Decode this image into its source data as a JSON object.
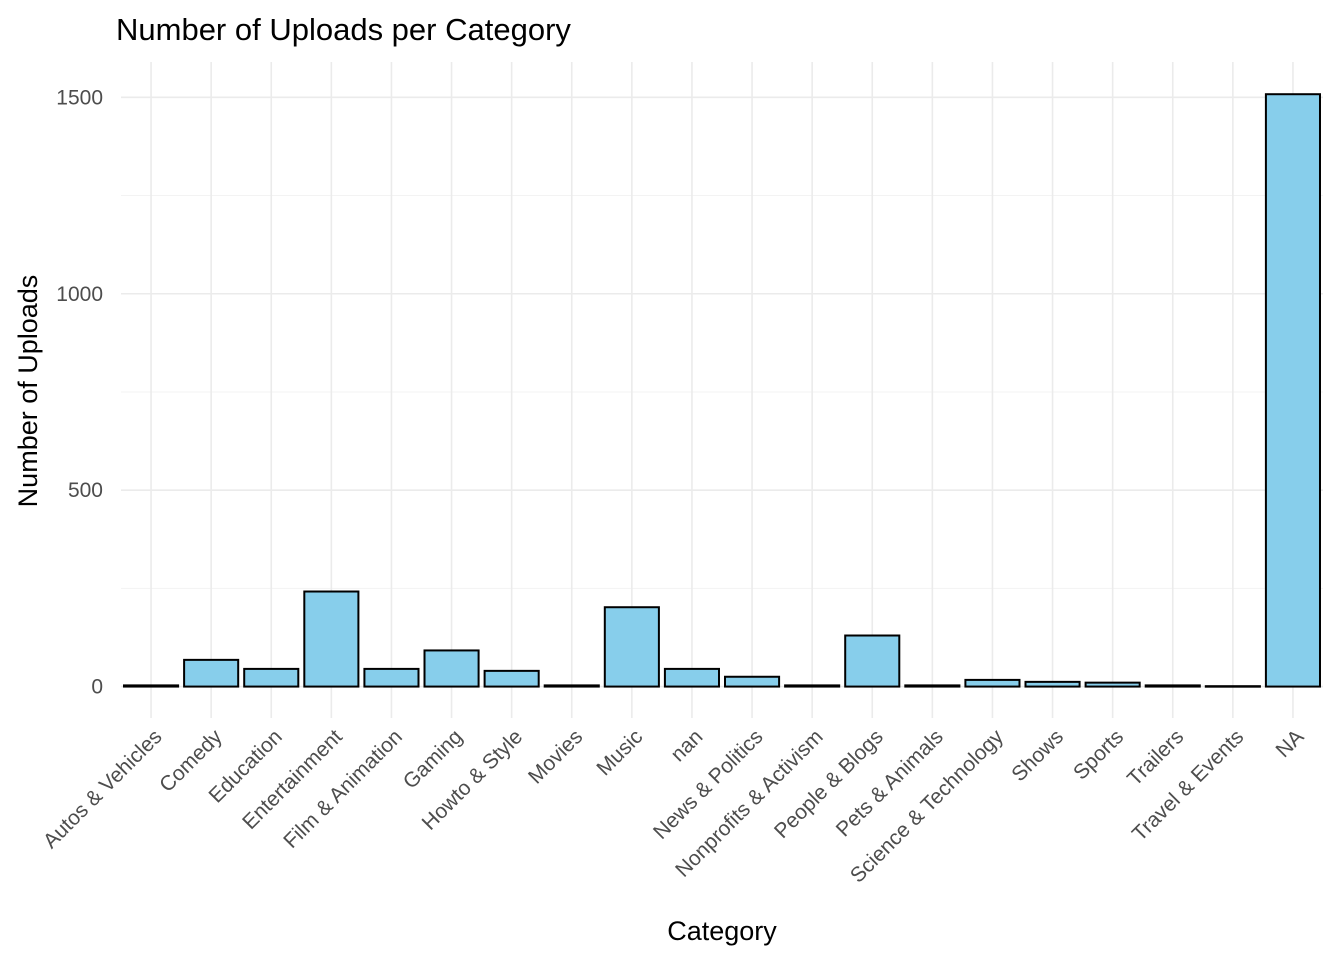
{
  "chart_data": {
    "type": "bar",
    "title": "Number of Uploads per Category",
    "xlabel": "Category",
    "ylabel": "Number of Uploads",
    "categories": [
      "Autos & Vehicles",
      "Comedy",
      "Education",
      "Entertainment",
      "Film & Animation",
      "Gaming",
      "Howto & Style",
      "Movies",
      "Music",
      "nan",
      "News & Politics",
      "Nonprofits & Activism",
      "People & Blogs",
      "Pets & Animals",
      "Science & Technology",
      "Shows",
      "Sports",
      "Trailers",
      "Travel & Events",
      "NA"
    ],
    "values": [
      3,
      68,
      45,
      242,
      45,
      92,
      40,
      3,
      202,
      45,
      25,
      3,
      130,
      3,
      17,
      12,
      10,
      3,
      1,
      1508
    ],
    "ylim": [
      -80,
      1590
    ],
    "yticks": [
      0,
      500,
      1000,
      1500
    ],
    "grid": true,
    "legend": "none",
    "colors": {
      "bar_fill": "#87ceeb",
      "bar_stroke": "#000000"
    }
  }
}
